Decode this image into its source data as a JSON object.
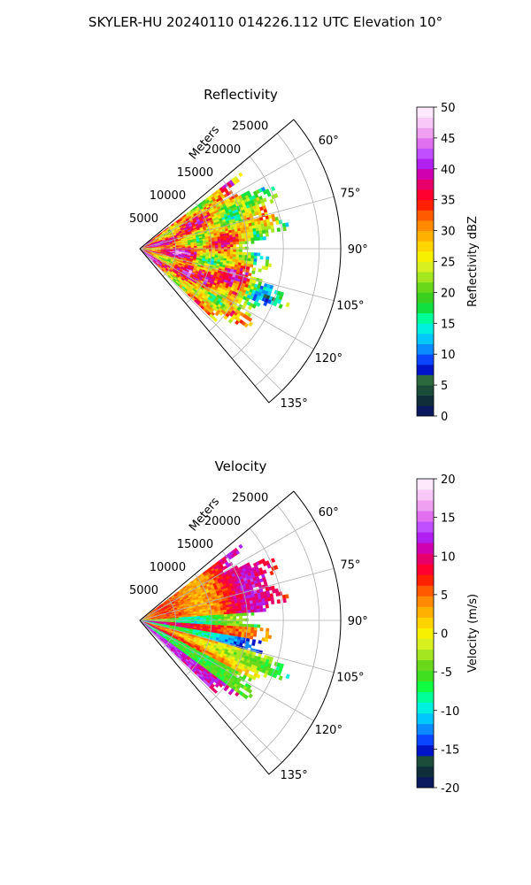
{
  "figure": {
    "title": "SKYLER-HU  20240110  014226.112 UTC Elevation 10°"
  },
  "chart_data": [
    {
      "type": "heatmap",
      "projection": "polar-sector",
      "title": "Reflectivity",
      "range_label": "Meters",
      "range_ticks": [
        "5000",
        "10000",
        "15000",
        "20000",
        "25000"
      ],
      "range_lim": [
        0,
        28000
      ],
      "azimuth_lim": [
        50,
        140
      ],
      "azimuth_ticks": [
        "60°",
        "75°",
        "90°",
        "105°",
        "120°",
        "135°"
      ],
      "grid": true,
      "data_max_range": 21000,
      "colorbar": {
        "label": "Reflectivity dBZ",
        "range": [
          0,
          50
        ],
        "ticks": [
          "0",
          "5",
          "10",
          "15",
          "20",
          "25",
          "30",
          "35",
          "40",
          "45",
          "50"
        ],
        "colors": [
          "#0b1a5e",
          "#0f2e3a",
          "#1b4d3a",
          "#2c6a3e",
          "#0014c8",
          "#0a46ff",
          "#0a8cff",
          "#00c8ff",
          "#00f0e0",
          "#00ff99",
          "#10e040",
          "#3ad020",
          "#6ad81a",
          "#a4e620",
          "#d8f020",
          "#f7f000",
          "#ffd400",
          "#ffb000",
          "#ff8a00",
          "#ff5a00",
          "#ff2000",
          "#ff0030",
          "#e8006a",
          "#d000b0",
          "#b020f0",
          "#c050ff",
          "#e070f0",
          "#f0a0f0",
          "#f8c8f8",
          "#fde8fc"
        ]
      }
    },
    {
      "type": "heatmap",
      "projection": "polar-sector",
      "title": "Velocity",
      "range_label": "Meters",
      "range_ticks": [
        "5000",
        "10000",
        "15000",
        "20000",
        "25000"
      ],
      "range_lim": [
        0,
        28000
      ],
      "azimuth_lim": [
        50,
        140
      ],
      "azimuth_ticks": [
        "60°",
        "75°",
        "90°",
        "105°",
        "120°",
        "135°"
      ],
      "grid": true,
      "data_max_range": 21000,
      "colorbar": {
        "label": "Velocity (m/s)",
        "range": [
          -20,
          20
        ],
        "ticks": [
          "-20",
          "-15",
          "-10",
          "-5",
          "0",
          "5",
          "10",
          "15",
          "20"
        ],
        "colors": [
          "#0b1a5e",
          "#0f2e3a",
          "#1b4d3a",
          "#0014c8",
          "#0a46ff",
          "#0a8cff",
          "#00c8ff",
          "#00f0e0",
          "#00ff99",
          "#10ff40",
          "#40e020",
          "#6ad81a",
          "#a4e620",
          "#d8f020",
          "#f7f000",
          "#ffd400",
          "#ffb000",
          "#ff8a00",
          "#ff5a00",
          "#ff2000",
          "#ff0030",
          "#e8006a",
          "#d000b0",
          "#b020f0",
          "#c050ff",
          "#e070f0",
          "#f0a0f0",
          "#f8c8f8",
          "#fde8fc"
        ]
      }
    }
  ]
}
